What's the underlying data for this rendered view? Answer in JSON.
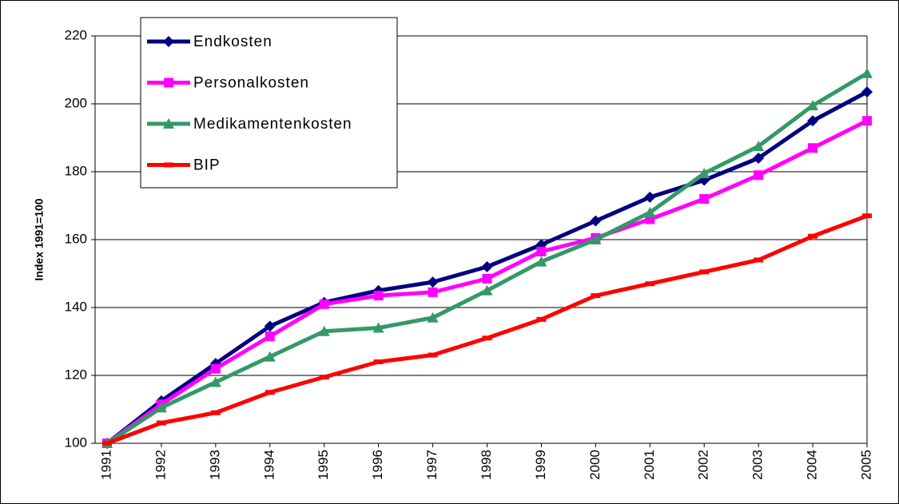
{
  "chart_data": {
    "type": "line",
    "y_label": "Index 1991=100",
    "categories": [
      "1991",
      "1992",
      "1993",
      "1994",
      "1995",
      "1996",
      "1997",
      "1998",
      "1999",
      "2000",
      "2001",
      "2002",
      "2003",
      "2004",
      "2005"
    ],
    "series": [
      {
        "name": "Endkosten",
        "color": "#000080",
        "marker": "diamond",
        "values": [
          100,
          112.5,
          123.5,
          134.5,
          141.5,
          145,
          147.5,
          152,
          158.5,
          165.5,
          172.5,
          177.5,
          184,
          195,
          203.5
        ]
      },
      {
        "name": "Personalkosten",
        "color": "#ff00ff",
        "marker": "square",
        "values": [
          100,
          111.5,
          122,
          131.5,
          141,
          143.5,
          144.5,
          148.5,
          156.5,
          160.5,
          166,
          172,
          179,
          187,
          195
        ]
      },
      {
        "name": "Medikamentenkosten",
        "color": "#339966",
        "marker": "triangle",
        "values": [
          100,
          110.5,
          118,
          125.5,
          133,
          134,
          137,
          145,
          153.5,
          160,
          168,
          179.5,
          187.5,
          199.5,
          209
        ]
      },
      {
        "name": "BIP",
        "color": "#ff0000",
        "marker": "dash",
        "values": [
          100,
          106,
          109,
          115,
          119.5,
          124,
          126,
          131,
          136.5,
          143.5,
          147,
          150.5,
          154,
          161,
          167
        ]
      }
    ],
    "ylim": [
      100,
      220
    ],
    "yticks": [
      100,
      120,
      140,
      160,
      180,
      200,
      220
    ],
    "grid": true,
    "legend": "upper left"
  }
}
